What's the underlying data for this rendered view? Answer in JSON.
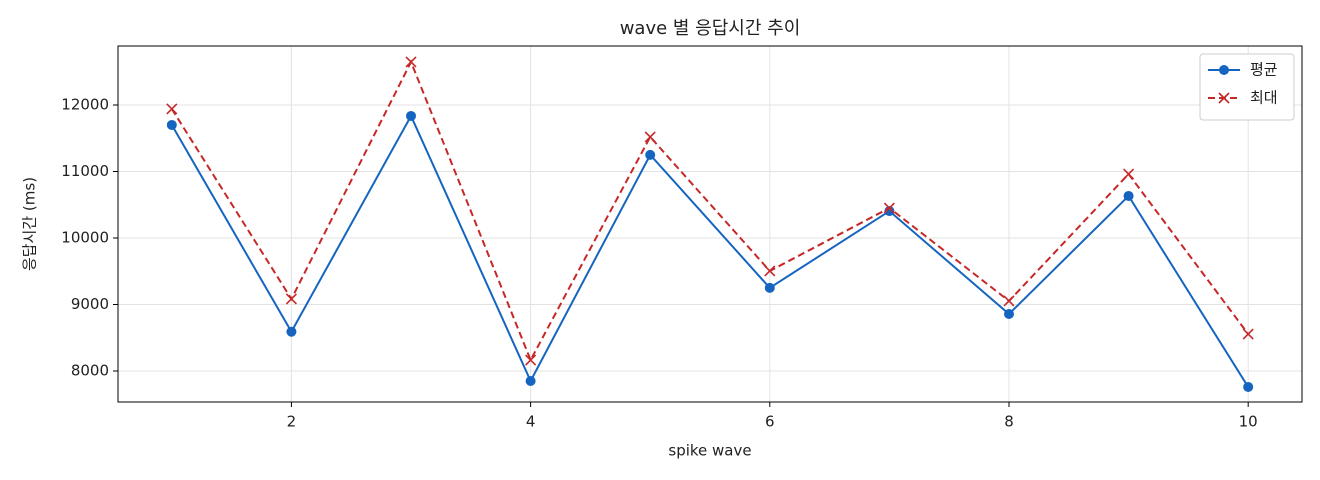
{
  "chart_data": {
    "type": "line",
    "title": "wave 별 응답시간 추이",
    "x_label": "spike wave",
    "y_label": "응답시간 (ms)",
    "x": [
      1,
      2,
      3,
      4,
      5,
      6,
      7,
      8,
      9,
      10
    ],
    "series": [
      {
        "name": "평균",
        "color": "#1565c0",
        "marker": "circle",
        "dash": "solid",
        "values": [
          11700,
          8590,
          11835,
          7850,
          11250,
          9250,
          10405,
          8857,
          10632,
          7760
        ]
      },
      {
        "name": "최대",
        "color": "#c62828",
        "marker": "x",
        "dash": "dashed",
        "values": [
          11940,
          9083,
          12647,
          8165,
          11520,
          9504,
          10451,
          9053,
          10962,
          8556
        ]
      }
    ],
    "xlim": [
      0.55,
      10.45
    ],
    "ylim": [
      7534,
      12887
    ],
    "xticks": [
      2,
      4,
      6,
      8,
      10
    ],
    "yticks": [
      8000,
      9000,
      10000,
      11000,
      12000
    ],
    "grid": true,
    "legend": "upper right"
  }
}
